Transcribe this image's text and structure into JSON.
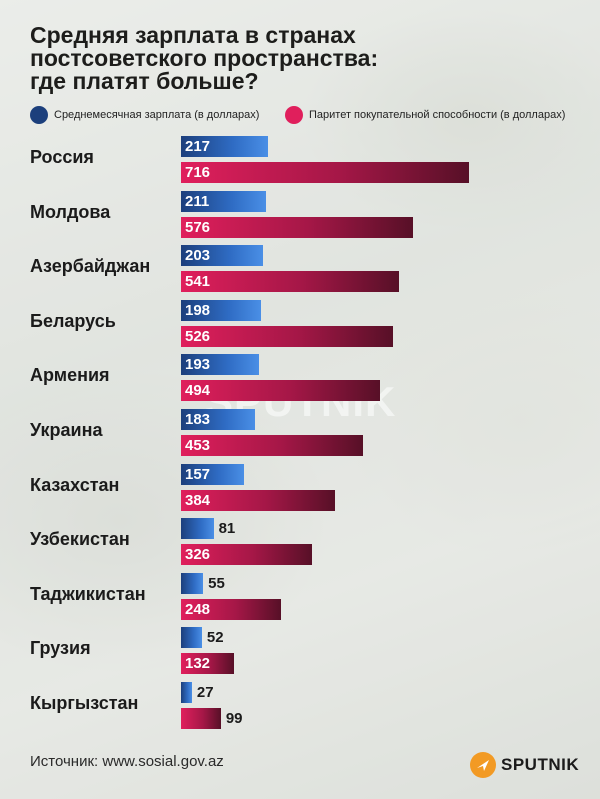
{
  "title_lines": [
    "Средняя зарплата в странах",
    "постсоветского пространства:",
    "где платят больше?"
  ],
  "colors": {
    "salary": "#2f6cc4",
    "ppp": "#e01f5c",
    "salary_legend": "#1c3f7c",
    "ppp_legend": "#e01f5c"
  },
  "chart_data": {
    "type": "bar",
    "orientation": "horizontal",
    "title": "Средняя зарплата в странах постсоветского пространства: где платят больше?",
    "categories": [
      "Россия",
      "Молдова",
      "Азербайджан",
      "Беларусь",
      "Армения",
      "Украина",
      "Казахстан",
      "Узбекистан",
      "Таджикистан",
      "Грузия",
      "Кыргызстан"
    ],
    "series": [
      {
        "name": "Среднемесячная зарплата (в долларах)",
        "values": [
          217,
          211,
          203,
          198,
          193,
          183,
          157,
          81,
          55,
          52,
          27
        ]
      },
      {
        "name": "Паритет покупательной способности (в долларах)",
        "values": [
          716,
          576,
          541,
          526,
          494,
          453,
          384,
          326,
          248,
          132,
          99
        ]
      }
    ],
    "xlim": [
      0,
      716
    ],
    "legend_position": "top"
  },
  "source": "Источник: www.sosial.gov.az",
  "watermark": "SPUTNIK",
  "logo": {
    "text": "SPUTNIK"
  }
}
